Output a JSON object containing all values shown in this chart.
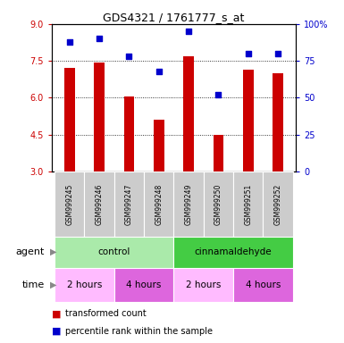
{
  "title": "GDS4321 / 1761777_s_at",
  "samples": [
    "GSM999245",
    "GSM999246",
    "GSM999247",
    "GSM999248",
    "GSM999249",
    "GSM999250",
    "GSM999251",
    "GSM999252"
  ],
  "bar_values": [
    7.2,
    7.45,
    6.05,
    5.1,
    7.7,
    4.5,
    7.15,
    7.0
  ],
  "dot_values": [
    88,
    90,
    78,
    68,
    95,
    52,
    80,
    80
  ],
  "ylim_left": [
    3,
    9
  ],
  "ylim_right": [
    0,
    100
  ],
  "yticks_left": [
    3,
    4.5,
    6,
    7.5,
    9
  ],
  "yticks_right": [
    0,
    25,
    50,
    75,
    100
  ],
  "bar_color": "#cc0000",
  "dot_color": "#0000cc",
  "agent_groups": [
    {
      "label": "control",
      "start": 0,
      "end": 4,
      "color": "#aaeaaa"
    },
    {
      "label": "cinnamaldehyde",
      "start": 4,
      "end": 8,
      "color": "#44cc44"
    }
  ],
  "time_groups": [
    {
      "label": "2 hours",
      "start": 0,
      "end": 2,
      "color": "#ffbbff"
    },
    {
      "label": "4 hours",
      "start": 2,
      "end": 4,
      "color": "#dd66dd"
    },
    {
      "label": "2 hours",
      "start": 4,
      "end": 6,
      "color": "#ffbbff"
    },
    {
      "label": "4 hours",
      "start": 6,
      "end": 8,
      "color": "#dd66dd"
    }
  ],
  "legend_bar_label": "transformed count",
  "legend_dot_label": "percentile rank within the sample",
  "agent_label": "agent",
  "time_label": "time",
  "grid_yticks": [
    4.5,
    6.0,
    7.5
  ],
  "tick_color_left": "#cc0000",
  "tick_color_right": "#0000cc",
  "sample_bg": "#cccccc"
}
